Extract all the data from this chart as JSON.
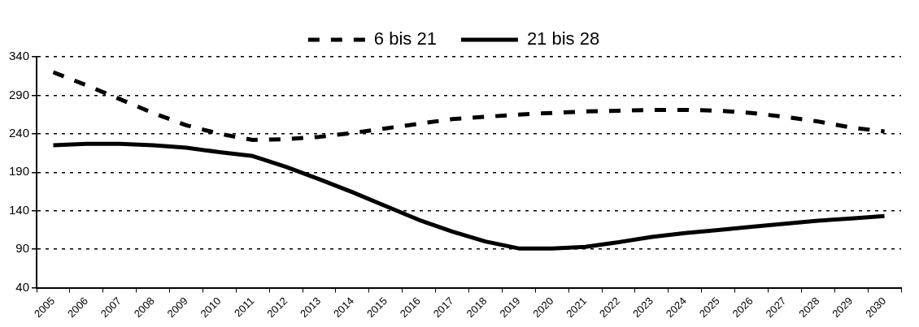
{
  "chart_data": {
    "type": "line",
    "categories": [
      "2005",
      "2006",
      "2007",
      "2008",
      "2009",
      "2010",
      "2011",
      "2012",
      "2013",
      "2014",
      "2015",
      "2016",
      "2017",
      "2018",
      "2019",
      "2020",
      "2021",
      "2022",
      "2023",
      "2024",
      "2025",
      "2026",
      "2027",
      "2028",
      "2029",
      "2030"
    ],
    "series": [
      {
        "name": "6 bis 21",
        "color": "#000000",
        "line_style": "dashed",
        "values": [
          320,
          303,
          285,
          267,
          251,
          240,
          232,
          233,
          236,
          241,
          247,
          253,
          259,
          262,
          265,
          267,
          269,
          270,
          271,
          271,
          270,
          267,
          262,
          256,
          248,
          243
        ]
      },
      {
        "name": "21 bis 28",
        "color": "#000000",
        "line_style": "solid",
        "values": [
          225,
          227,
          227,
          225,
          222,
          216,
          211,
          197,
          181,
          164,
          146,
          128,
          113,
          100,
          91,
          91,
          93,
          99,
          106,
          111,
          115,
          119,
          123,
          127,
          130,
          133
        ]
      }
    ],
    "ylim": [
      40,
      340
    ],
    "yticks": [
      40,
      90,
      140,
      190,
      240,
      290,
      340
    ],
    "grid": "y",
    "legend": "top",
    "marker": "none"
  }
}
